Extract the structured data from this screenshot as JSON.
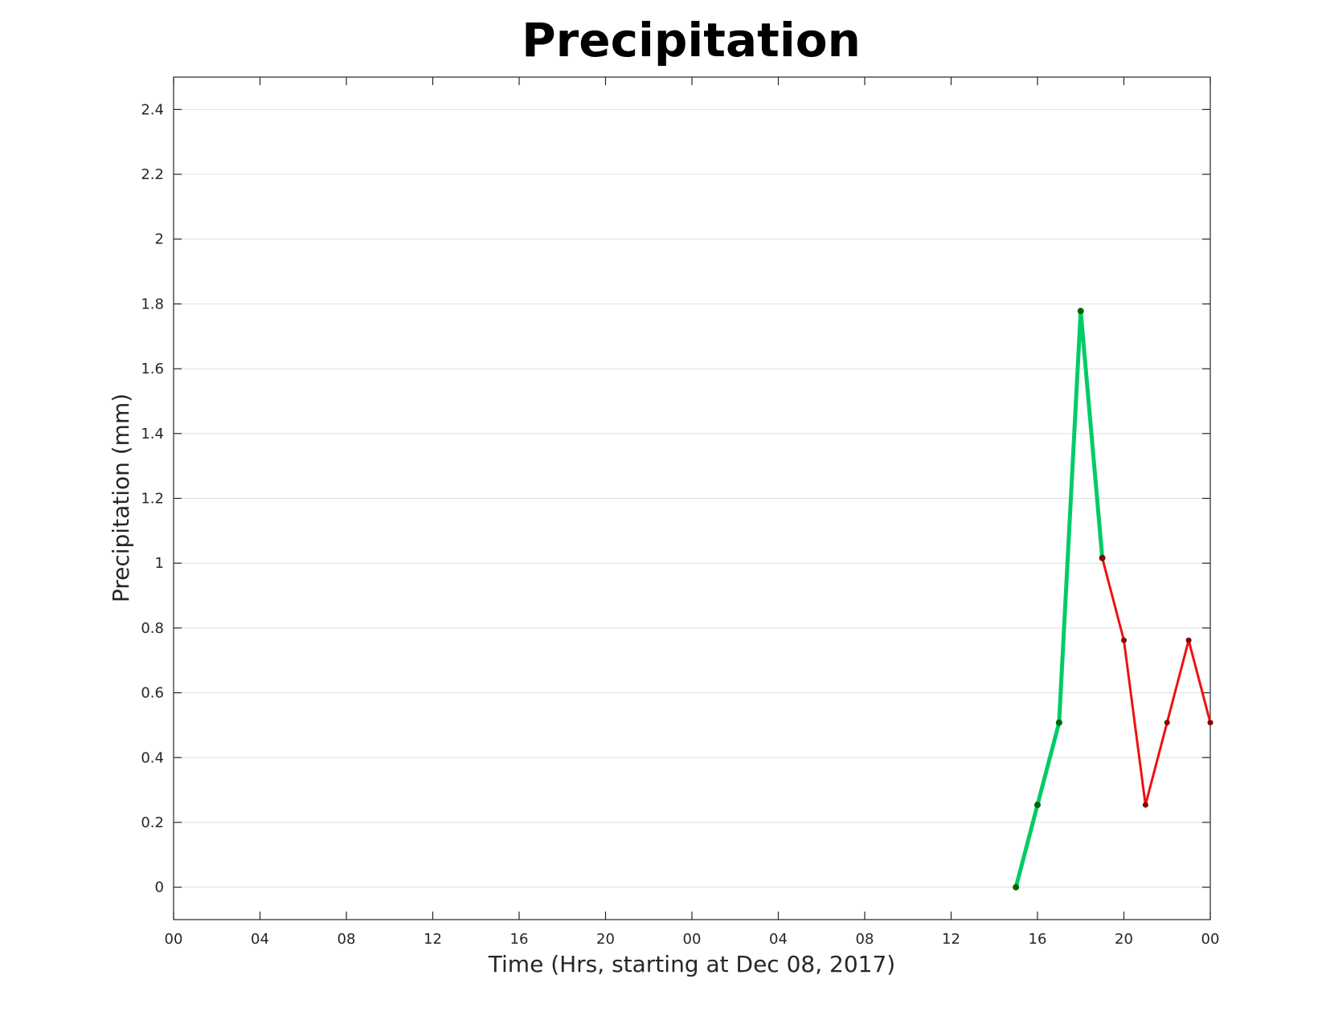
{
  "chart_data": {
    "type": "line",
    "title": "Precipitation",
    "xlabel": "Time (Hrs, starting at Dec 08, 2017)",
    "ylabel": "Precipitation (mm)",
    "xlim": [
      0,
      48
    ],
    "ylim": [
      -0.1,
      2.5
    ],
    "xtick_values": [
      0,
      4,
      8,
      12,
      16,
      20,
      24,
      28,
      32,
      36,
      40,
      44,
      48
    ],
    "xtick_labels": [
      "00",
      "04",
      "08",
      "12",
      "16",
      "20",
      "00",
      "04",
      "08",
      "12",
      "16",
      "20",
      "00"
    ],
    "ytick_values": [
      0,
      0.2,
      0.4,
      0.6,
      0.8,
      1.0,
      1.2,
      1.4,
      1.6,
      1.8,
      2.0,
      2.2,
      2.4
    ],
    "ytick_labels": [
      "0",
      "0.2",
      "0.4",
      "0.6",
      "0.8",
      "1",
      "1.2",
      "1.4",
      "1.6",
      "1.8",
      "2",
      "2.2",
      "2.4"
    ],
    "grid": "horizontal",
    "series": [
      {
        "color": "#00cc66",
        "marker_color": "#006600",
        "line_style": "thick",
        "x": [
          39,
          40,
          41,
          42,
          43
        ],
        "y": [
          0,
          0.254,
          0.508,
          1.778,
          1.016
        ]
      },
      {
        "color": "#ee1111",
        "marker_color": "#8b0000",
        "line_style": "thin",
        "x": [
          43,
          44,
          45,
          46,
          47,
          48
        ],
        "y": [
          1.016,
          0.762,
          0.254,
          0.508,
          0.762,
          0.508
        ]
      }
    ]
  }
}
